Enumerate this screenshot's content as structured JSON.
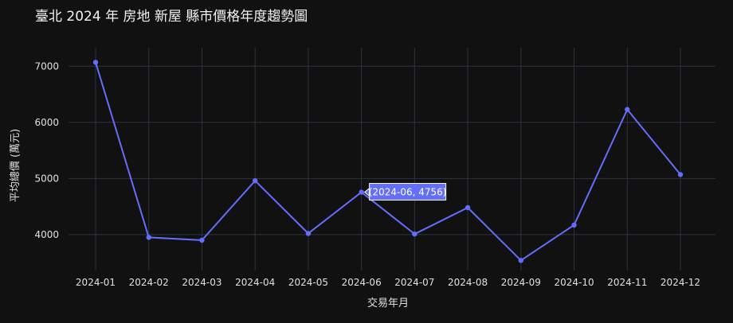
{
  "chart_data": {
    "type": "line",
    "title": "臺北 2024 年 房地 新屋 縣市價格年度趨勢圖",
    "xlabel": "交易年月",
    "ylabel": "平均總價 (萬元)",
    "categories": [
      "2024-01",
      "2024-02",
      "2024-03",
      "2024-04",
      "2024-05",
      "2024-06",
      "2024-07",
      "2024-08",
      "2024-09",
      "2024-10",
      "2024-11",
      "2024-12"
    ],
    "series": [
      {
        "values": [
          7070,
          3950,
          3900,
          4960,
          4020,
          4756,
          4010,
          4480,
          3540,
          4170,
          6230,
          5070
        ],
        "color": "#636efa"
      }
    ],
    "y_ticks": [
      4000,
      5000,
      6000,
      7000
    ],
    "ylim": [
      3360,
      7330
    ],
    "grid": true,
    "hover": {
      "index": 5,
      "label": "(2024-06, 4756)"
    },
    "colors": {
      "background": "#111111",
      "grid": "#2c3340",
      "series": "#636efa"
    }
  }
}
